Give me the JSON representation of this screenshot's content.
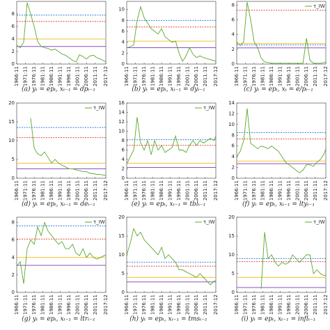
{
  "chart_data": [
    {
      "type": "line",
      "caption": "(a) yₜ = epₜ, xₜ₋₁ = dpₜ₋₁",
      "x": [
        "1966:11",
        "1968:11",
        "1970:11",
        "1972:11",
        "1974:11",
        "1976:11",
        "1978:11",
        "1980:11",
        "1982:11",
        "1984:11",
        "1986:11",
        "1988:11",
        "1990:11",
        "1992:11",
        "1994:11",
        "1996:11",
        "1998:11",
        "2000:11",
        "2002:11",
        "2004:11",
        "2006:11",
        "2008:11",
        "2010:11",
        "2012:11",
        "2014:11",
        "2016:11",
        "2017:12"
      ],
      "xticks": [
        "1966:11",
        "1971:11",
        "1976:11",
        "1981:11",
        "1986:11",
        "1991:11",
        "1996:11",
        "2001:11",
        "2006:11",
        "2011:11",
        "2017:12"
      ],
      "ylim": [
        0,
        10
      ],
      "yticks": [
        0,
        2,
        4,
        6,
        8
      ],
      "series": [
        {
          "color": "#5aa82a",
          "values": [
            3,
            2.6,
            3.5,
            9.8,
            8,
            6,
            3.6,
            2.8,
            2.6,
            2.5,
            2.2,
            2.4,
            2,
            1.6,
            1.4,
            1,
            0.6,
            0.3,
            1.5,
            1.2,
            0.8,
            1.3,
            1.4,
            1,
            0.8,
            0.5,
            0.4
          ]
        }
      ],
      "reference_lines": [
        {
          "value": 7.8,
          "color": "#2f7fe0",
          "style": "dashed"
        },
        {
          "value": 6.8,
          "color": "#e0483a",
          "style": "dashed"
        },
        {
          "value": 4,
          "color": "#f2c12e",
          "style": "solid"
        },
        {
          "value": 2.8,
          "color": "#8b4fc0",
          "style": "solid"
        }
      ]
    },
    {
      "type": "line",
      "caption": "(b) yₜ = epₜ, xₜ₋₁ = dyₜ₋₁",
      "x": [
        "1966:11",
        "1968:11",
        "1970:11",
        "1972:11",
        "1974:11",
        "1976:11",
        "1978:11",
        "1980:11",
        "1982:11",
        "1984:11",
        "1986:11",
        "1988:11",
        "1990:11",
        "1992:11",
        "1994:11",
        "1996:11",
        "1998:11",
        "2000:11",
        "2002:11",
        "2004:11",
        "2006:11",
        "2008:11",
        "2010:11",
        "2012:11",
        "2014:11",
        "2016:11",
        "2017:12"
      ],
      "xticks": [
        "1966:11",
        "1971:11",
        "1976:11",
        "1981:11",
        "1986:11",
        "1991:11",
        "1996:11",
        "2001:11",
        "2006:11",
        "2011:11",
        "2017:12"
      ],
      "ylim": [
        0,
        11.5
      ],
      "yticks": [
        0,
        2,
        4,
        6,
        8,
        10
      ],
      "series": [
        {
          "color": "#5aa82a",
          "values": [
            3,
            3.2,
            3.5,
            8,
            10.5,
            8.5,
            7.5,
            6.5,
            6,
            5.5,
            6.5,
            5,
            4.5,
            4,
            4.2,
            2,
            0.5,
            1.5,
            3,
            1.8,
            1.2,
            1.5,
            1.2,
            1,
            0.8,
            0.6,
            0.5
          ]
        }
      ],
      "reference_lines": [
        {
          "value": 8,
          "color": "#2f7fe0",
          "style": "dashed"
        },
        {
          "value": 6.8,
          "color": "#e0483a",
          "style": "dashed"
        },
        {
          "value": 4.2,
          "color": "#f2c12e",
          "style": "solid"
        },
        {
          "value": 3,
          "color": "#8b4fc0",
          "style": "solid"
        }
      ]
    },
    {
      "type": "line",
      "caption": "(c) yₜ = epₜ, xₜ = e/pₜ₋₁",
      "x": [
        "1966:11",
        "1968:11",
        "1970:11",
        "1972:11",
        "1974:11",
        "1976:11",
        "1978:11",
        "1980:11",
        "1982:11",
        "1984:11",
        "1986:11",
        "1988:11",
        "1990:11",
        "1992:11",
        "1994:11",
        "1996:11",
        "1998:11",
        "2000:11",
        "2002:11",
        "2004:11",
        "2006:11",
        "2008:11",
        "2010:11",
        "2012:11",
        "2014:11",
        "2016:11",
        "2017:12"
      ],
      "xticks": [
        "1966:11",
        "1971:11",
        "1976:11",
        "1981:11",
        "1986:11",
        "1991:11",
        "1996:11",
        "2001:11",
        "2006:11",
        "2011:11",
        "2017:12"
      ],
      "ylim": [
        0,
        8.5
      ],
      "yticks": [
        0,
        2,
        4,
        6,
        8
      ],
      "series": [
        {
          "name": "τ_IW",
          "color": "#5aa82a",
          "values": [
            3,
            2.5,
            3,
            8.4,
            6,
            3,
            2.2,
            0.8,
            0.3,
            0.2,
            0.1,
            0.1,
            0.1,
            0.1,
            0.1,
            0.1,
            0.1,
            0.1,
            0.1,
            0.1,
            3.5,
            0.5,
            0.1,
            0.1,
            0.1,
            0.2,
            0.3
          ]
        }
      ],
      "reference_lines": [
        {
          "value": 7.3,
          "color": "#e0483a",
          "style": "dashed"
        },
        {
          "value": 2.8,
          "color": "#f2c12e",
          "style": "solid"
        },
        {
          "value": 2.6,
          "color": "#2f7fe0",
          "style": "dashed"
        },
        {
          "value": 2.2,
          "color": "#8b4fc0",
          "style": "solid"
        }
      ]
    },
    {
      "type": "line",
      "caption": "(d) yₜ = epₜ, xₜ₋₁ = deₜ₋₁",
      "x": [
        "1966:11",
        "1968:11",
        "1970:11",
        "1972:11",
        "1974:11",
        "1976:11",
        "1978:11",
        "1980:11",
        "1982:11",
        "1984:11",
        "1986:11",
        "1988:11",
        "1990:11",
        "1992:11",
        "1994:11",
        "1996:11",
        "1998:11",
        "2000:11",
        "2002:11",
        "2004:11",
        "2006:11",
        "2008:11",
        "2010:11",
        "2012:11",
        "2014:11",
        "2016:11",
        "2017:12"
      ],
      "xticks": [
        "1966:11",
        "1971:11",
        "1976:11",
        "1981:11",
        "1986:11",
        "1991:11",
        "1996:11",
        "2001:11",
        "2006:11",
        "2011:11",
        "2017:12"
      ],
      "ylim": [
        0,
        20
      ],
      "yticks": [
        0,
        5,
        10,
        15,
        20
      ],
      "series": [
        {
          "name": "τ_IW",
          "color": "#5aa82a",
          "values": [
            null,
            null,
            null,
            null,
            16,
            8,
            6.5,
            6,
            7,
            5.5,
            4,
            5,
            4,
            3.5,
            3,
            2.5,
            2.5,
            2.2,
            2,
            1.8,
            1.8,
            1.3,
            1.2,
            1,
            1,
            0.8,
            0.8
          ]
        }
      ],
      "reference_lines": [
        {
          "value": 13.5,
          "color": "#2f7fe0",
          "style": "dashed"
        },
        {
          "value": 10.8,
          "color": "#e0483a",
          "style": "dashed"
        },
        {
          "value": 4,
          "color": "#f2c12e",
          "style": "solid"
        },
        {
          "value": 2.5,
          "color": "#8b4fc0",
          "style": "solid"
        }
      ]
    },
    {
      "type": "line",
      "caption": "(e) yₜ = epₜ, xₜ₋₁ = tblₜ₋₁",
      "x": [
        "1966:11",
        "1968:11",
        "1970:11",
        "1972:11",
        "1974:11",
        "1976:11",
        "1978:11",
        "1980:11",
        "1982:11",
        "1984:11",
        "1986:11",
        "1988:11",
        "1990:11",
        "1992:11",
        "1994:11",
        "1996:11",
        "1998:11",
        "2000:11",
        "2002:11",
        "2004:11",
        "2006:11",
        "2008:11",
        "2010:11",
        "2012:11",
        "2014:11",
        "2016:11",
        "2017:12"
      ],
      "xticks": [
        "1966:11",
        "1971:11",
        "1976:11",
        "1981:11",
        "1986:11",
        "1991:11",
        "1996:11",
        "2001:11",
        "2006:11",
        "2011:11",
        "2017:12"
      ],
      "ylim": [
        0,
        16
      ],
      "yticks": [
        0,
        2,
        4,
        6,
        8,
        10,
        12,
        14,
        16
      ],
      "series": [
        {
          "name": "τ_IW",
          "color": "#5aa82a",
          "values": [
            3,
            4.5,
            6,
            13,
            7.5,
            6,
            8,
            5,
            8,
            6,
            7,
            5.5,
            6,
            6.5,
            9,
            6,
            6,
            5.5,
            7,
            8,
            7,
            8,
            7.5,
            8,
            8.5,
            8,
            9
          ]
        }
      ],
      "reference_lines": [
        {
          "value": 8.2,
          "color": "#2f7fe0",
          "style": "dashed"
        },
        {
          "value": 7,
          "color": "#e0483a",
          "style": "dashed"
        },
        {
          "value": 3.2,
          "color": "#f2c12e",
          "style": "solid"
        },
        {
          "value": 2.3,
          "color": "#8b4fc0",
          "style": "solid"
        }
      ]
    },
    {
      "type": "line",
      "caption": "(f) yₜ = epₜ, xₜ₋₁ = ltyₜ₋₁",
      "x": [
        "1966:11",
        "1968:11",
        "1970:11",
        "1972:11",
        "1974:11",
        "1976:11",
        "1978:11",
        "1980:11",
        "1982:11",
        "1984:11",
        "1986:11",
        "1988:11",
        "1990:11",
        "1992:11",
        "1994:11",
        "1996:11",
        "1998:11",
        "2000:11",
        "2002:11",
        "2004:11",
        "2006:11",
        "2008:11",
        "2010:11",
        "2012:11",
        "2014:11",
        "2016:11",
        "2017:12"
      ],
      "xticks": [
        "1966:11",
        "1971:11",
        "1976:11",
        "1981:11",
        "1986:11",
        "1991:11",
        "1996:11",
        "2001:11",
        "2006:11",
        "2011:11",
        "2017:12"
      ],
      "ylim": [
        0,
        14
      ],
      "yticks": [
        0,
        2,
        4,
        6,
        8,
        10,
        12,
        14
      ],
      "series": [
        {
          "color": "#5aa82a",
          "values": [
            4,
            5,
            7,
            13,
            6.5,
            6,
            5.5,
            6,
            5.8,
            5.5,
            6,
            5.5,
            5,
            4,
            3,
            2.5,
            2,
            1.5,
            1,
            1.5,
            2.5,
            2.5,
            2.2,
            3,
            3.5,
            4.5,
            5.5
          ]
        }
      ],
      "reference_lines": [
        {
          "value": 8.5,
          "color": "#2f7fe0",
          "style": "dashed"
        },
        {
          "value": 7.3,
          "color": "#e0483a",
          "style": "dashed"
        },
        {
          "value": 3.2,
          "color": "#f2c12e",
          "style": "solid"
        },
        {
          "value": 2.7,
          "color": "#8b4fc0",
          "style": "solid"
        }
      ]
    },
    {
      "type": "line",
      "caption": "(g) yₜ = epₜ, xₜ₋₁ = ltrₜ₋₁",
      "x": [
        "1966:11",
        "1968:11",
        "1970:11",
        "1972:11",
        "1974:11",
        "1976:11",
        "1978:11",
        "1980:11",
        "1982:11",
        "1984:11",
        "1986:11",
        "1988:11",
        "1990:11",
        "1992:11",
        "1994:11",
        "1996:11",
        "1998:11",
        "2000:11",
        "2002:11",
        "2004:11",
        "2006:11",
        "2008:11",
        "2010:11",
        "2012:11",
        "2014:11",
        "2016:11",
        "2017:12"
      ],
      "xticks": [
        "1966:11",
        "1971:11",
        "1976:11",
        "1981:11",
        "1986:11",
        "1991:11",
        "1996:11",
        "2001:11",
        "2006:11",
        "2011:11",
        "2017:12"
      ],
      "ylim": [
        0,
        8.6
      ],
      "yticks": [
        0,
        2,
        4,
        6,
        8
      ],
      "series": [
        {
          "name": "τ_IW",
          "color": "#5aa82a",
          "values": [
            3,
            3.5,
            1,
            5,
            6,
            5.5,
            7.5,
            6.5,
            8,
            7,
            6.5,
            6,
            5.5,
            5.8,
            5,
            5,
            5.5,
            4.5,
            4.2,
            5,
            4,
            4.5,
            4,
            3.8,
            4,
            4.2,
            4.3
          ]
        }
      ],
      "reference_lines": [
        {
          "value": 7.6,
          "color": "#2f7fe0",
          "style": "dashed"
        },
        {
          "value": 6.1,
          "color": "#e0483a",
          "style": "dashed"
        },
        {
          "value": 4,
          "color": "#f2c12e",
          "style": "solid"
        },
        {
          "value": 3.1,
          "color": "#8b4fc0",
          "style": "solid"
        }
      ]
    },
    {
      "type": "line",
      "caption": "(h) yₜ = epₜ, xₜ₋₁ = tmsₜ₋₁",
      "x": [
        "1966:11",
        "1968:11",
        "1970:11",
        "1972:11",
        "1974:11",
        "1976:11",
        "1978:11",
        "1980:11",
        "1982:11",
        "1984:11",
        "1986:11",
        "1988:11",
        "1990:11",
        "1992:11",
        "1994:11",
        "1996:11",
        "1998:11",
        "2000:11",
        "2002:11",
        "2004:11",
        "2006:11",
        "2008:11",
        "2010:11",
        "2012:11",
        "2014:11",
        "2016:11",
        "2017:12"
      ],
      "xticks": [
        "1966:11",
        "1971:11",
        "1976:11",
        "1981:11",
        "1986:11",
        "1991:11",
        "1996:11",
        "2001:11",
        "2006:11",
        "2011:11",
        "2017:12"
      ],
      "ylim": [
        0,
        20
      ],
      "yticks": [
        0,
        5,
        10,
        15,
        20
      ],
      "series": [
        {
          "name": "τ_IW",
          "color": "#5aa82a",
          "values": [
            10,
            13,
            17,
            15,
            16,
            14,
            13,
            12,
            11,
            10,
            12,
            9,
            10,
            9,
            8,
            6,
            6,
            5.5,
            5,
            4.5,
            4,
            5,
            4,
            3,
            2,
            3,
            3
          ]
        }
      ],
      "reference_lines": [
        {
          "value": 8,
          "color": "#2f7fe0",
          "style": "dashed"
        },
        {
          "value": 7,
          "color": "#e0483a",
          "style": "dashed"
        },
        {
          "value": 4,
          "color": "#f2c12e",
          "style": "solid"
        },
        {
          "value": 2.8,
          "color": "#8b4fc0",
          "style": "solid"
        }
      ]
    },
    {
      "type": "line",
      "caption": "(i) yₜ = epₜ, xₜ₋₁ = inflₜ₋₁",
      "x": [
        "1966:11",
        "1968:11",
        "1970:11",
        "1972:11",
        "1974:11",
        "1976:11",
        "1978:11",
        "1980:11",
        "1982:11",
        "1984:11",
        "1986:11",
        "1988:11",
        "1990:11",
        "1992:11",
        "1994:11",
        "1996:11",
        "1998:11",
        "2000:11",
        "2002:11",
        "2004:11",
        "2006:11",
        "2008:11",
        "2010:11",
        "2012:11",
        "2014:11",
        "2016:11",
        "2017:12"
      ],
      "xticks": [
        "1966:11",
        "1971:11",
        "1976:11",
        "1981:11",
        "1986:11",
        "1991:11",
        "1996:11",
        "2001:11",
        "2006:11",
        "2011:11",
        "2017:12"
      ],
      "ylim": [
        0,
        20
      ],
      "yticks": [
        0,
        5,
        10,
        15,
        20
      ],
      "series": [
        {
          "name": "τ_IW",
          "color": "#5aa82a",
          "values": [
            null,
            null,
            null,
            null,
            null,
            null,
            null,
            1,
            16,
            9,
            10,
            8,
            7,
            8,
            7.5,
            8,
            10,
            9,
            8,
            9,
            10,
            10,
            5,
            6,
            5,
            4.5,
            4.5
          ]
        }
      ],
      "reference_lines": [
        {
          "value": 9,
          "color": "#2f7fe0",
          "style": "dashed"
        },
        {
          "value": 8.2,
          "color": "#e0483a",
          "style": "dashed"
        },
        {
          "value": 4,
          "color": "#f2c12e",
          "style": "solid"
        },
        {
          "value": 1.3,
          "color": "#8b4fc0",
          "style": "solid"
        }
      ]
    }
  ]
}
